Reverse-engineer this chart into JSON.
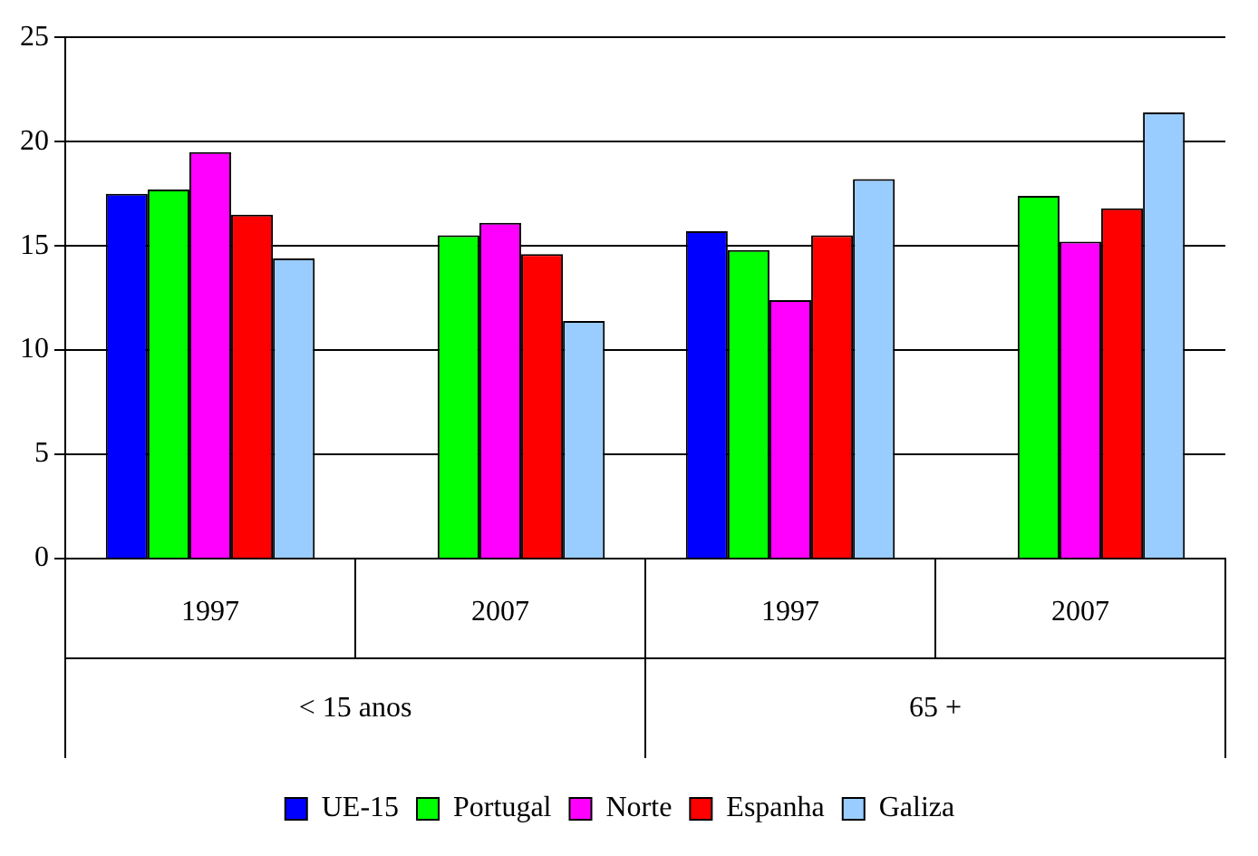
{
  "chart_data": {
    "type": "bar",
    "categories": [
      "1997",
      "2007",
      "1997",
      "2007"
    ],
    "annotations": [
      "< 15 anos",
      "65 +"
    ],
    "series": [
      {
        "name": "UE-15",
        "color": "#0000ff",
        "values": [
          17.5,
          null,
          15.7,
          null
        ]
      },
      {
        "name": "Portugal",
        "color": "#00ff00",
        "values": [
          17.7,
          15.5,
          14.8,
          17.4
        ]
      },
      {
        "name": "Norte",
        "color": "#ff00ff",
        "values": [
          19.5,
          16.1,
          12.4,
          15.2
        ]
      },
      {
        "name": "Espanha",
        "color": "#ff0000",
        "values": [
          16.5,
          14.6,
          15.5,
          16.8
        ]
      },
      {
        "name": "Galiza",
        "color": "#99ccff",
        "values": [
          14.4,
          11.4,
          18.2,
          21.4
        ]
      }
    ],
    "ylim": [
      0,
      25
    ],
    "yticks": [
      0,
      5,
      10,
      15,
      20,
      25
    ],
    "grid": "y",
    "legend": "bottom"
  }
}
